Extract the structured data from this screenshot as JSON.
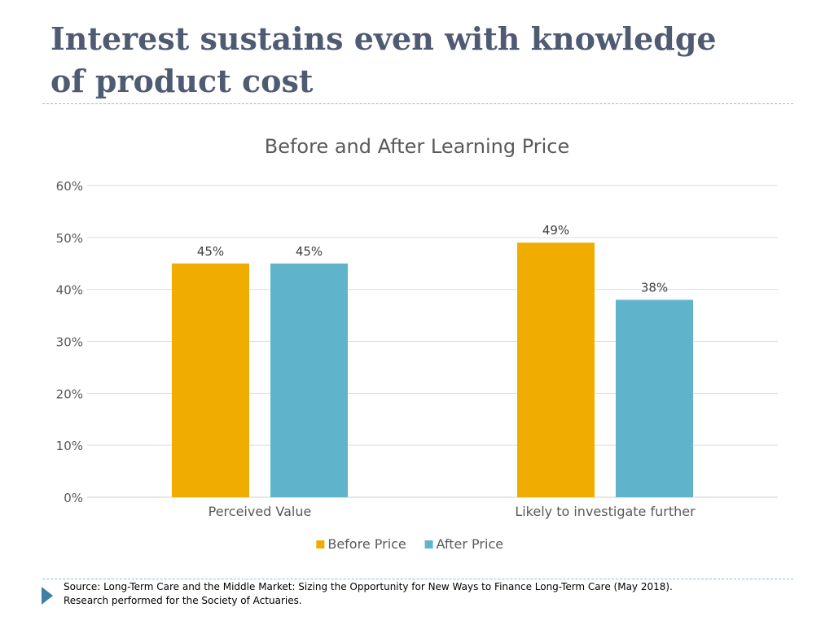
{
  "slide": {
    "title_line1": "Interest sustains even with knowledge",
    "title_line2": "of product cost"
  },
  "chart_data": {
    "type": "bar",
    "title": "Before and After Learning Price",
    "categories": [
      "Perceived Value",
      "Likely to investigate further"
    ],
    "series": [
      {
        "name": "Before Price",
        "values": [
          45,
          49
        ],
        "labels": [
          "45%",
          "49%"
        ],
        "color": "#f0ad00"
      },
      {
        "name": "After Price",
        "values": [
          45,
          38
        ],
        "labels": [
          "45%",
          "38%"
        ],
        "color": "#5fb4cc"
      }
    ],
    "ylim": [
      0,
      60
    ],
    "yticks": [
      "0%",
      "10%",
      "20%",
      "30%",
      "40%",
      "50%",
      "60%"
    ],
    "grid": true,
    "legend": "bottom"
  },
  "footer": {
    "source_line1": "Source:  Long-Term Care and the Middle Market: Sizing the Opportunity for New Ways to Finance Long-Term Care (May 2018).",
    "source_line2": "Research performed for the Society of Actuaries.",
    "accent_color": "#3f7fa6"
  }
}
